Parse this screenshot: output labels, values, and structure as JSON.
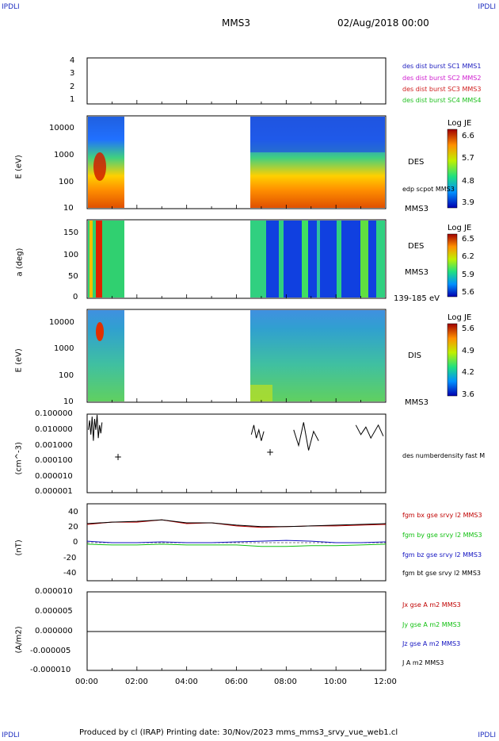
{
  "corners": {
    "tl": "IPDLI",
    "tr": "IPDLI",
    "bl": "IPDLI",
    "br": "IPDLI"
  },
  "header": {
    "spacecraft": "MMS3",
    "date": "02/Aug/2018 00:00"
  },
  "footer": {
    "text": "Produced by cl (IRAP)   Printing date: 30/Nov/2023   mms_mms3_srvy_vue_web1.cl"
  },
  "colors": {
    "mms1": "#2020c0",
    "mms2": "#d020d0",
    "mms3": "#d02020",
    "mms4": "#20c020",
    "bx": "#c00000",
    "by": "#10c010",
    "bz": "#1010c0",
    "bt": "#000000"
  },
  "chart_data": [
    {
      "type": "table",
      "id": "panel1",
      "ylim": [
        1,
        4
      ],
      "yticks": [
        "4",
        "3",
        "2",
        "1"
      ],
      "legend": [
        {
          "label": "des dist burst SC1 MMS1",
          "color": "#2020c0"
        },
        {
          "label": "des dist burst SC2 MMS2",
          "color": "#d020d0"
        },
        {
          "label": "des dist burst SC3 MMS3",
          "color": "#d02020"
        },
        {
          "label": "des dist burst SC4 MMS4",
          "color": "#20c020"
        }
      ]
    },
    {
      "type": "heatmap",
      "id": "panel2",
      "ylabel": "E (eV)",
      "yscale": "log",
      "ylim": [
        10,
        30000
      ],
      "yticks": [
        "10000",
        "1000",
        "100",
        "10"
      ],
      "right_labels": [
        "DES",
        "edp scpot MMS3",
        "MMS3"
      ],
      "colorbar": {
        "title": "Log JE",
        "ticks": [
          "6.6",
          "5.7",
          "4.8",
          "3.9"
        ]
      }
    },
    {
      "type": "heatmap",
      "id": "panel3",
      "ylabel": "a (deg)",
      "ylim": [
        0,
        180
      ],
      "yticks": [
        "150",
        "100",
        "50",
        "0"
      ],
      "right_labels": [
        "DES",
        "MMS3",
        "139-185 eV"
      ],
      "colorbar": {
        "title": "Log JE",
        "ticks": [
          "6.5",
          "6.2",
          "5.9",
          "5.6"
        ]
      }
    },
    {
      "type": "heatmap",
      "id": "panel4",
      "ylabel": "E (eV)",
      "yscale": "log",
      "ylim": [
        10,
        30000
      ],
      "yticks": [
        "10000",
        "1000",
        "100",
        "10"
      ],
      "right_labels": [
        "DIS",
        "MMS3"
      ],
      "colorbar": {
        "title": "Log JE",
        "ticks": [
          "5.6",
          "4.9",
          "4.2",
          "3.6"
        ]
      }
    },
    {
      "type": "line",
      "id": "panel5",
      "ylabel": "(cm^-3)",
      "yscale": "log",
      "ylim": [
        1e-06,
        0.1
      ],
      "yticks": [
        "0.100000",
        "0.010000",
        "0.001000",
        "0.000100",
        "0.000010",
        "0.000001"
      ],
      "right_labels": [
        "des numberdensity fast M"
      ],
      "series": [
        {
          "segment": 1,
          "x": [
            0.05,
            0.1,
            0.15,
            0.2,
            0.25,
            0.3,
            0.35,
            0.4,
            0.45,
            0.5,
            0.55,
            0.6
          ],
          "y": [
            0.01,
            0.04,
            0.005,
            0.07,
            0.002,
            0.05,
            0.01,
            0.09,
            0.003,
            0.02,
            0.006,
            0.03
          ]
        },
        {
          "segment": 2,
          "x": [
            6.6,
            6.7,
            6.8,
            6.9,
            7.0,
            7.1
          ],
          "y": [
            0.005,
            0.02,
            0.003,
            0.01,
            0.002,
            0.008
          ]
        },
        {
          "segment": 3,
          "x": [
            8.3,
            8.5,
            8.7,
            8.9,
            9.1,
            9.3
          ],
          "y": [
            0.01,
            0.001,
            0.03,
            0.0005,
            0.008,
            0.002
          ]
        },
        {
          "segment": 4,
          "x": [
            10.8,
            11.0,
            11.2,
            11.4,
            11.7,
            11.9
          ],
          "y": [
            0.02,
            0.005,
            0.015,
            0.003,
            0.02,
            0.004
          ]
        }
      ]
    },
    {
      "type": "line",
      "id": "panel6",
      "ylabel": "(nT)",
      "ylim": [
        -50,
        50
      ],
      "yticks": [
        "40",
        "20",
        "0",
        "-20",
        "-40"
      ],
      "series": [
        {
          "name": "fgm bx gse srvy l2 MMS3",
          "color": "#c00000",
          "x": [
            0,
            1,
            2,
            3,
            4,
            5,
            6,
            7,
            8,
            9,
            10,
            11,
            12
          ],
          "y": [
            24,
            27,
            27,
            30,
            25,
            26,
            22,
            20,
            21,
            22,
            22,
            23,
            24
          ]
        },
        {
          "name": "fgm by gse srvy l2 MMS3",
          "color": "#10c010",
          "x": [
            0,
            1,
            2,
            3,
            4,
            5,
            6,
            7,
            8,
            9,
            10,
            11,
            12
          ],
          "y": [
            -2,
            -3,
            -3,
            -2,
            -3,
            -3,
            -3,
            -5,
            -5,
            -4,
            -4,
            -3,
            -2
          ]
        },
        {
          "name": "fgm bz gse srvy l2 MMS3",
          "color": "#1010c0",
          "x": [
            0,
            1,
            2,
            3,
            4,
            5,
            6,
            7,
            8,
            9,
            10,
            11,
            12
          ],
          "y": [
            2,
            0,
            0,
            1,
            0,
            0,
            1,
            2,
            3,
            2,
            0,
            0,
            1
          ]
        },
        {
          "name": "fgm bt gse srvy l2 MMS3",
          "color": "#000000",
          "x": [
            0,
            1,
            2,
            3,
            4,
            5,
            6,
            7,
            8,
            9,
            10,
            11,
            12
          ],
          "y": [
            25,
            27,
            28,
            30,
            26,
            26,
            23,
            21,
            21,
            22,
            23,
            24,
            25
          ]
        }
      ]
    },
    {
      "type": "line",
      "id": "panel7",
      "ylabel": "(A/m2)",
      "ylim": [
        -1e-05,
        1e-05
      ],
      "yticks": [
        "0.000010",
        "0.000005",
        "0.000000",
        "-0.000005",
        "-0.000010"
      ],
      "series": [
        {
          "name": "Jx gse A m2 MMS3",
          "color": "#c00000",
          "x": [
            0,
            12
          ],
          "y": [
            0,
            0
          ]
        },
        {
          "name": "Jy gse A m2 MMS3",
          "color": "#10c010",
          "x": [
            0,
            12
          ],
          "y": [
            0,
            0
          ]
        },
        {
          "name": "Jz gse A m2 MMS3",
          "color": "#1010c0",
          "x": [
            0,
            12
          ],
          "y": [
            0,
            0
          ]
        },
        {
          "name": "J A m2 MMS3",
          "color": "#000000",
          "x": [
            0,
            12
          ],
          "y": [
            0,
            0
          ]
        }
      ]
    }
  ],
  "xaxis": {
    "ticks": [
      "00:00",
      "02:00",
      "04:00",
      "06:00",
      "08:00",
      "10:00",
      "12:00"
    ],
    "range_hours": [
      0,
      12
    ],
    "data_gap_hours": [
      1.5,
      6.6
    ]
  }
}
